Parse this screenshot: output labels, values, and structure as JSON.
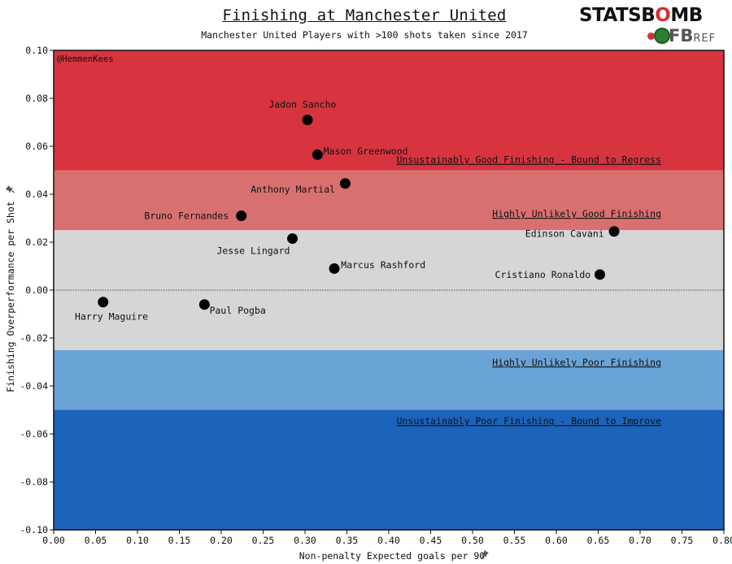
{
  "header": {
    "title": "Finishing at Manchester United",
    "subtitle": "Manchester United Players with >100 shots taken since 2017",
    "credit": "@HemmenKees"
  },
  "logo": {
    "stats": "STATSB",
    "o": "O",
    "mb": "MB",
    "fb": "FB",
    "ref": "REF"
  },
  "colors": {
    "dark_red": "#d7343f",
    "light_red": "#d97070",
    "grey": "#d6d6d6",
    "light_blue": "#6aa3d6",
    "dark_blue": "#1c63bb"
  },
  "icons": {
    "pin": "pin-icon"
  },
  "chart_data": {
    "type": "scatter",
    "title": "Finishing at Manchester United",
    "subtitle": "Manchester United Players with >100 shots taken since 2017",
    "xlabel": "Non-penalty Expected goals per 90",
    "ylabel": "Finishing Overperformance per Shot",
    "xlim": [
      0.0,
      0.8
    ],
    "ylim": [
      -0.1,
      0.1
    ],
    "xticks": [
      0.0,
      0.05,
      0.1,
      0.15,
      0.2,
      0.25,
      0.3,
      0.35,
      0.4,
      0.45,
      0.5,
      0.55,
      0.6,
      0.65,
      0.7,
      0.75,
      0.8
    ],
    "yticks": [
      -0.1,
      -0.08,
      -0.06,
      -0.04,
      -0.02,
      0.0,
      0.02,
      0.04,
      0.06,
      0.08,
      0.1
    ],
    "reference_line_y": 0.0,
    "bands": [
      {
        "y0": 0.05,
        "y1": 0.1,
        "label": "Unsustainably Good Finishing - Bound to Regress",
        "label_y": 0.053,
        "color": "#d7343f"
      },
      {
        "y0": 0.025,
        "y1": 0.05,
        "label": "Highly Unlikely Good Finishing",
        "label_y": 0.0305,
        "color": "#d97070"
      },
      {
        "y0": -0.025,
        "y1": 0.025,
        "label": "",
        "label_y": 0,
        "color": "#d6d6d6"
      },
      {
        "y0": -0.05,
        "y1": -0.025,
        "label": "Highly Unlikely Poor Finishing",
        "label_y": -0.0315,
        "color": "#6aa3d6"
      },
      {
        "y0": -0.1,
        "y1": -0.05,
        "label": "Unsustainably Poor Finishing - Bound to Improve",
        "label_y": -0.056,
        "color": "#1c63bb"
      }
    ],
    "points": [
      {
        "name": "Jadon Sancho",
        "x": 0.303,
        "y": 0.071,
        "anchor": "middle",
        "dx": -0.006,
        "dy": 0.0065
      },
      {
        "name": "Mason Greenwood",
        "x": 0.315,
        "y": 0.0565,
        "anchor": "start",
        "dx": 0.007,
        "dy": 0.0015
      },
      {
        "name": "Anthony Martial",
        "x": 0.348,
        "y": 0.0445,
        "anchor": "end",
        "dx": -0.012,
        "dy": -0.0025
      },
      {
        "name": "Bruno Fernandes",
        "x": 0.224,
        "y": 0.031,
        "anchor": "end",
        "dx": -0.015,
        "dy": 0.0
      },
      {
        "name": "Jesse Lingard",
        "x": 0.285,
        "y": 0.0215,
        "anchor": "end",
        "dx": -0.003,
        "dy": -0.005
      },
      {
        "name": "Marcus Rashford",
        "x": 0.335,
        "y": 0.009,
        "anchor": "start",
        "dx": 0.008,
        "dy": 0.0015
      },
      {
        "name": "Edinson Cavani",
        "x": 0.669,
        "y": 0.0245,
        "anchor": "end",
        "dx": -0.012,
        "dy": -0.001
      },
      {
        "name": "Cristiano Ronaldo",
        "x": 0.652,
        "y": 0.0065,
        "anchor": "end",
        "dx": -0.011,
        "dy": 0.0
      },
      {
        "name": "Harry Maguire",
        "x": 0.059,
        "y": -0.005,
        "anchor": "middle",
        "dx": 0.01,
        "dy": -0.006
      },
      {
        "name": "Paul Pogba",
        "x": 0.18,
        "y": -0.006,
        "anchor": "start",
        "dx": 0.006,
        "dy": -0.0025
      }
    ]
  }
}
